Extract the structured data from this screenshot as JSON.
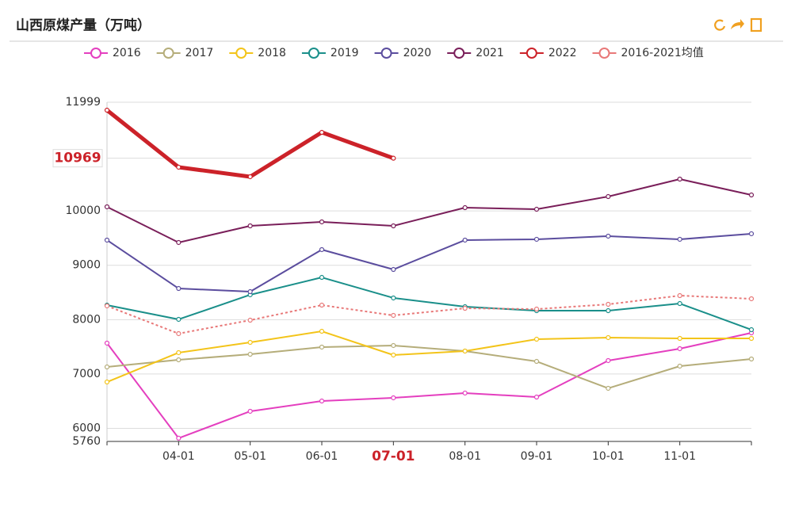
{
  "chart_data": {
    "type": "line",
    "title": "山西原煤产量（万吨）",
    "categories": [
      null,
      "04-01",
      "05-01",
      "06-01",
      "07-01",
      "08-01",
      "09-01",
      "10-01",
      "11-01",
      null
    ],
    "series": [
      {
        "name": "2016",
        "color": "#e43fbf",
        "values": [
          7568,
          5820,
          6314,
          6503,
          6562,
          6650,
          6576,
          7247,
          7466,
          7757
        ]
      },
      {
        "name": "2017",
        "color": "#b5ad7a",
        "values": [
          7130,
          7261,
          7363,
          7495,
          7524,
          7422,
          7232,
          6737,
          7145,
          7276
        ]
      },
      {
        "name": "2018",
        "color": "#f3c41a",
        "values": [
          6853,
          7393,
          7582,
          7786,
          7349,
          7422,
          7640,
          7670,
          7655,
          7655
        ]
      },
      {
        "name": "2019",
        "color": "#1a8f8a",
        "values": [
          8267,
          8005,
          8457,
          8777,
          8399,
          8238,
          8165,
          8165,
          8296,
          7815
        ]
      },
      {
        "name": "2020",
        "color": "#5b4d9e",
        "values": [
          9463,
          8573,
          8515,
          9288,
          8923,
          9463,
          9478,
          9536,
          9478,
          9580
        ]
      },
      {
        "name": "2021",
        "color": "#7a1f5a",
        "values": [
          10075,
          9419,
          9725,
          9798,
          9725,
          10060,
          10031,
          10264,
          10585,
          10293
        ]
      },
      {
        "name": "2022",
        "color": "#cc2229",
        "width": 5,
        "values": [
          11853,
          10804,
          10629,
          11445,
          10969,
          null,
          null,
          null,
          null,
          null
        ]
      },
      {
        "name": "2016-2021均值",
        "color": "#e87878",
        "dashed": true,
        "values": [
          8253,
          7743,
          7990,
          8267,
          8078,
          8209,
          8194,
          8282,
          8442,
          8384
        ]
      }
    ],
    "ylim": [
      5760,
      11999
    ],
    "yticks": [
      5760,
      6000,
      7000,
      8000,
      9000,
      10000,
      11999
    ],
    "grid": true,
    "pointer": {
      "value": 10969,
      "category_index": 4,
      "color": "#cc2229"
    }
  }
}
